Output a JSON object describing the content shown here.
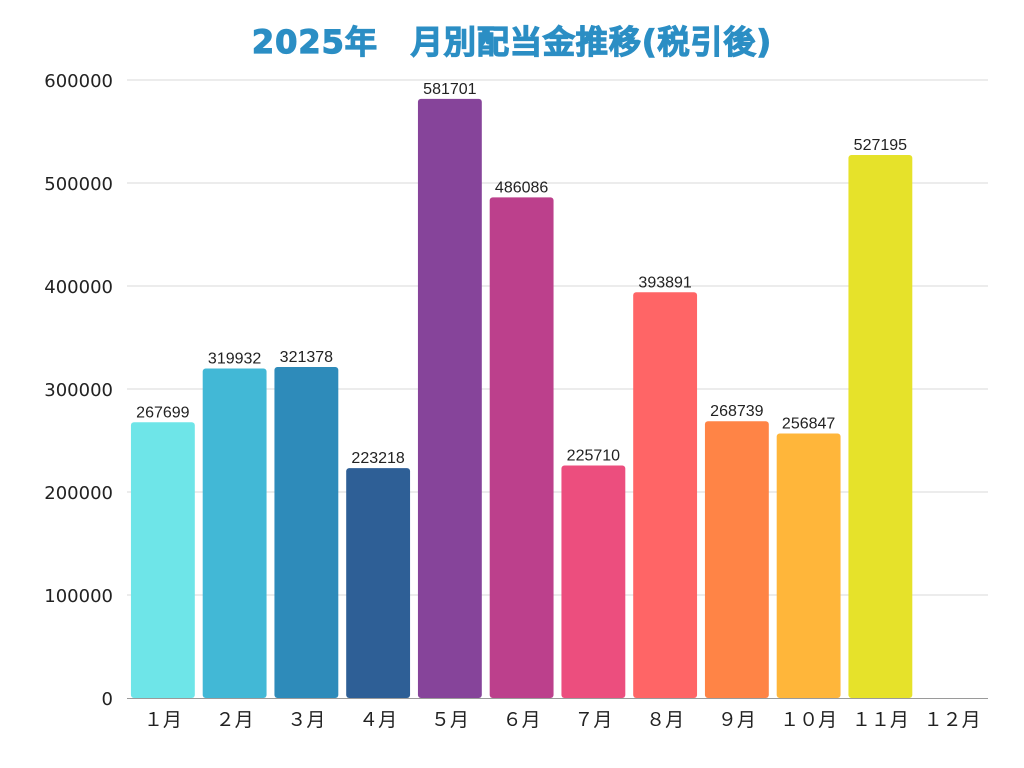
{
  "chart_data": {
    "type": "bar",
    "title": "2025年　月別配当金推移(税引後)",
    "xlabel": "",
    "ylabel": "",
    "categories": [
      "１月",
      "２月",
      "３月",
      "４月",
      "５月",
      "６月",
      "７月",
      "８月",
      "９月",
      "１０月",
      "１１月",
      "１２月"
    ],
    "values": [
      267699,
      319932,
      321378,
      223218,
      581701,
      486086,
      225710,
      393891,
      268739,
      256847,
      527195,
      null
    ],
    "data_labels": [
      "267699",
      "319932",
      "321378",
      "223218",
      "581701",
      "486086",
      "225710",
      "393891",
      "268739",
      "256847",
      "527195",
      ""
    ],
    "colors": [
      "#6ee5e8",
      "#42b8d6",
      "#2e8bba",
      "#2e5f96",
      "#86449a",
      "#bc408c",
      "#ec4e7e",
      "#ff6566",
      "#ff8446",
      "#ffb63a",
      "#e6e22a",
      "#cccccc"
    ],
    "ylim": [
      0,
      600000
    ],
    "yticks": [
      0,
      100000,
      200000,
      300000,
      400000,
      500000,
      600000
    ],
    "ytick_labels": [
      "0",
      "100000",
      "200000",
      "300000",
      "400000",
      "500000",
      "600000"
    ],
    "grid": true,
    "legend": "none"
  },
  "colors": {
    "title": "#2b8ec4",
    "grid": "#d9d9d9",
    "axis": "#9a9a9a",
    "text": "#222222"
  }
}
